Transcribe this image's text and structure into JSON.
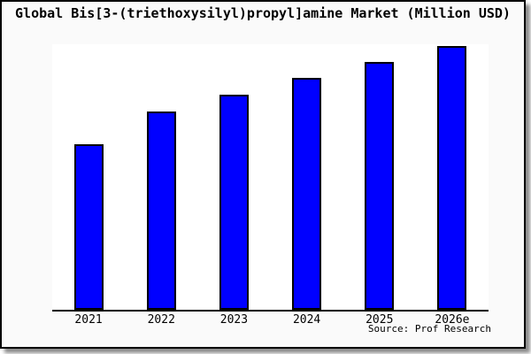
{
  "title": "Global Bis[3-(triethoxysilyl)propyl]amine Market (Million USD)",
  "source_label": "Source: Prof Research",
  "colors": {
    "bar_fill": "#0000ff",
    "bar_border": "#000000",
    "frame_border": "#000000",
    "frame_background": "#fafafa",
    "plot_background": "#ffffff",
    "axis_line": "#000000",
    "text": "#000000"
  },
  "chart_data": {
    "type": "bar",
    "title": "Global Bis[3-(triethoxysilyl)propyl]amine Market (Million USD)",
    "categories": [
      "2021",
      "2022",
      "2023",
      "2024",
      "2025",
      "2026e"
    ],
    "values": [
      62.9,
      75.3,
      81.6,
      88.0,
      94.0,
      100.0
    ],
    "value_note": "no y-axis shown; values estimated from bar heights, normalized so 2026e = 100",
    "xlabel": "",
    "ylabel": "",
    "ylim": [
      0,
      100
    ],
    "grid": false,
    "legend": false,
    "legend_position": "none",
    "series": [
      {
        "name": "Market (Million USD)",
        "values": [
          62.9,
          75.3,
          81.6,
          88.0,
          94.0,
          100.0
        ]
      }
    ]
  }
}
